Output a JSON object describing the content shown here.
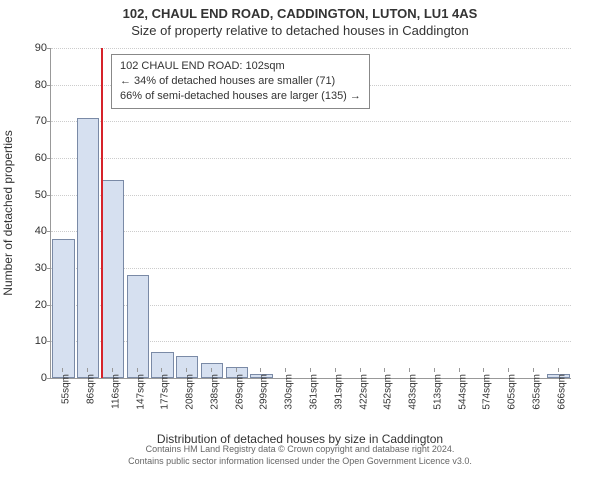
{
  "titles": {
    "main": "102, CHAUL END ROAD, CADDINGTON, LUTON, LU1 4AS",
    "sub": "Size of property relative to detached houses in Caddington"
  },
  "chart": {
    "type": "histogram",
    "ylabel": "Number of detached properties",
    "xlabel": "Distribution of detached houses by size in Caddington",
    "ylim": [
      0,
      90
    ],
    "ytick_step": 10,
    "grid_color": "#cccccc",
    "axis_color": "#999999",
    "background_color": "#ffffff",
    "bar_fill": "#d6e0f0",
    "bar_border": "#7a8aa6",
    "label_fontsize": 12,
    "tick_fontsize": 11,
    "title_fontsize": 13,
    "bins": [
      {
        "label": "55sqm",
        "value": 38
      },
      {
        "label": "86sqm",
        "value": 71
      },
      {
        "label": "116sqm",
        "value": 54
      },
      {
        "label": "147sqm",
        "value": 28
      },
      {
        "label": "177sqm",
        "value": 7
      },
      {
        "label": "208sqm",
        "value": 6
      },
      {
        "label": "238sqm",
        "value": 4
      },
      {
        "label": "269sqm",
        "value": 3
      },
      {
        "label": "299sqm",
        "value": 1
      },
      {
        "label": "330sqm",
        "value": 0
      },
      {
        "label": "361sqm",
        "value": 0
      },
      {
        "label": "391sqm",
        "value": 0
      },
      {
        "label": "422sqm",
        "value": 0
      },
      {
        "label": "452sqm",
        "value": 0
      },
      {
        "label": "483sqm",
        "value": 0
      },
      {
        "label": "513sqm",
        "value": 0
      },
      {
        "label": "544sqm",
        "value": 0
      },
      {
        "label": "574sqm",
        "value": 0
      },
      {
        "label": "605sqm",
        "value": 0
      },
      {
        "label": "635sqm",
        "value": 0
      },
      {
        "label": "666sqm",
        "value": 1
      }
    ],
    "marker": {
      "value_sqm": 102,
      "color": "#d6232a",
      "xmin_sqm": 55,
      "xstep_sqm": 30.55
    },
    "info_box": {
      "line1": "102 CHAUL END ROAD: 102sqm",
      "line2": "← 34% of detached houses are smaller (71)",
      "line3": "66% of semi-detached houses are larger (135) →",
      "border_color": "#888888",
      "background": "#ffffff",
      "fontsize": 11
    }
  },
  "attribution": {
    "line1": "Contains HM Land Registry data © Crown copyright and database right 2024.",
    "line2": "Contains public sector information licensed under the Open Government Licence v3.0."
  }
}
